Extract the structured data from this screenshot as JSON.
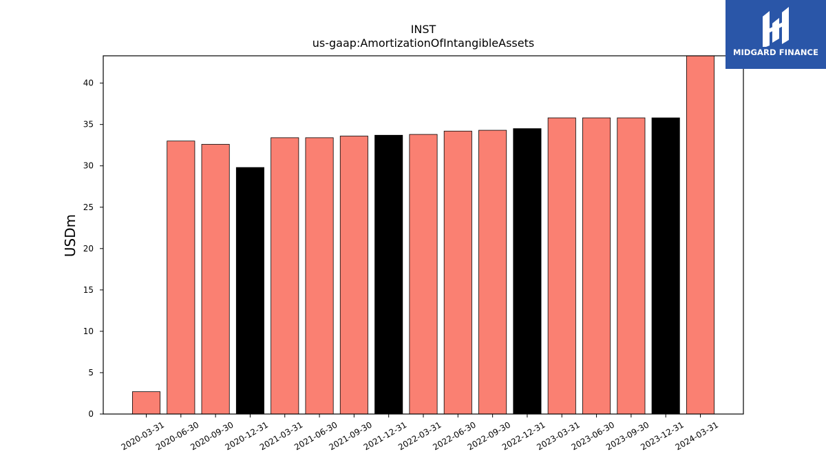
{
  "chart_data": {
    "type": "bar",
    "title": "INST",
    "subtitle": "us-gaap:AmortizationOfIntangibleAssets",
    "ylabel": "USDm",
    "xlabel": "",
    "ylim": [
      0,
      43.3
    ],
    "yticks": [
      0,
      5,
      10,
      15,
      20,
      25,
      30,
      35,
      40
    ],
    "categories": [
      "2020-03-31",
      "2020-06-30",
      "2020-09-30",
      "2020-12-31",
      "2021-03-31",
      "2021-06-30",
      "2021-09-30",
      "2021-12-31",
      "2022-03-31",
      "2022-06-30",
      "2022-09-30",
      "2022-12-31",
      "2023-03-31",
      "2023-06-30",
      "2023-09-30",
      "2023-12-31",
      "2024-03-31"
    ],
    "values": [
      2.7,
      33.0,
      32.6,
      29.8,
      33.4,
      33.4,
      33.6,
      33.7,
      33.8,
      34.2,
      34.3,
      34.5,
      35.8,
      35.8,
      35.8,
      35.8,
      43.3
    ],
    "colors": [
      "#fa8072",
      "#fa8072",
      "#fa8072",
      "#000000",
      "#fa8072",
      "#fa8072",
      "#fa8072",
      "#000000",
      "#fa8072",
      "#fa8072",
      "#fa8072",
      "#000000",
      "#fa8072",
      "#fa8072",
      "#fa8072",
      "#000000",
      "#fa8072"
    ],
    "grid": false,
    "legend": "none"
  },
  "logo": {
    "text": "MIDGARD FINANCE",
    "icon": "midgard-logo-icon",
    "color": "#2a56a8"
  }
}
